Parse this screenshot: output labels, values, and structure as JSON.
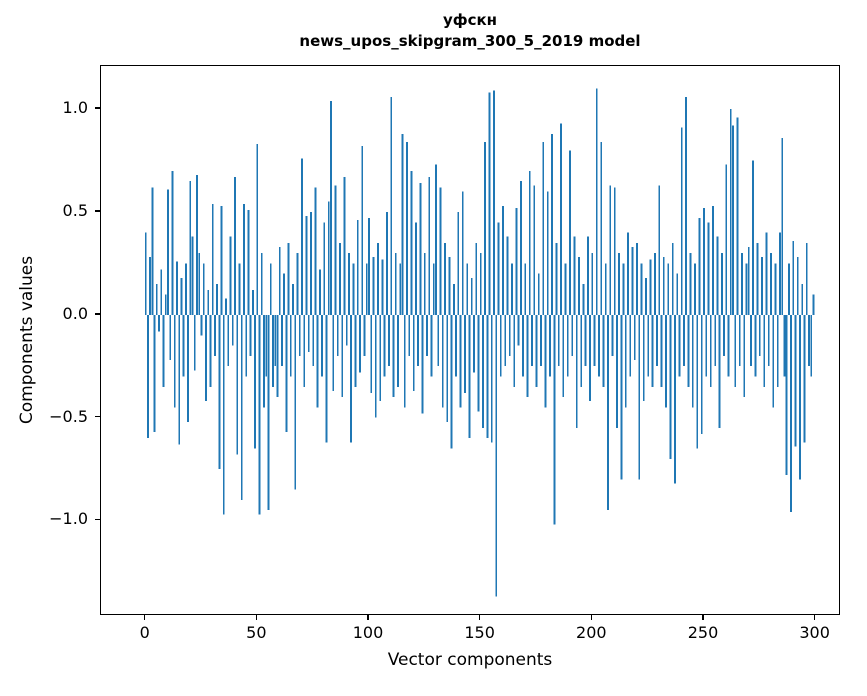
{
  "title": {
    "line1": "уфскн",
    "line2": "news_upos_skipgram_300_5_2019 model"
  },
  "chart_data": {
    "type": "bar",
    "title": "уфскн\nnews_upos_skipgram_300_5_2019 model",
    "xlabel": "Vector components",
    "ylabel": "Components values",
    "xlim": [
      -20,
      310
    ],
    "ylim": [
      -1.45,
      1.21
    ],
    "xticks": [
      0,
      50,
      100,
      150,
      200,
      250,
      300
    ],
    "yticks": [
      -1.0,
      -0.5,
      0.0,
      0.5,
      1.0
    ],
    "bar_color": "#1f77b4",
    "grid": false,
    "legend": "none",
    "x_is_index": true,
    "values": [
      0.4,
      -0.6,
      0.28,
      0.62,
      -0.57,
      0.15,
      -0.08,
      0.22,
      -0.35,
      0.1,
      0.61,
      -0.22,
      0.7,
      -0.45,
      0.26,
      -0.63,
      0.18,
      -0.3,
      0.25,
      -0.52,
      0.65,
      0.38,
      -0.27,
      0.68,
      0.3,
      -0.1,
      0.25,
      -0.42,
      0.12,
      -0.35,
      0.54,
      -0.2,
      0.15,
      -0.75,
      0.53,
      -0.97,
      0.08,
      -0.25,
      0.38,
      -0.15,
      0.67,
      -0.68,
      0.25,
      -0.9,
      0.54,
      -0.3,
      0.51,
      -0.2,
      0.12,
      -0.65,
      0.83,
      -0.97,
      0.3,
      -0.45,
      -0.3,
      -0.95,
      0.25,
      -0.35,
      -0.25,
      -0.4,
      0.33,
      -0.25,
      0.2,
      -0.57,
      0.35,
      -0.3,
      0.15,
      -0.85,
      0.3,
      -0.2,
      0.76,
      -0.35,
      0.48,
      -0.18,
      0.5,
      -0.25,
      0.62,
      -0.45,
      0.22,
      -0.3,
      0.45,
      -0.62,
      0.55,
      1.04,
      -0.37,
      0.63,
      -0.2,
      0.35,
      -0.4,
      0.67,
      -0.15,
      0.3,
      -0.62,
      0.25,
      -0.35,
      0.46,
      -0.28,
      0.82,
      -0.2,
      0.25,
      0.47,
      -0.38,
      0.28,
      -0.5,
      0.35,
      -0.42,
      0.27,
      -0.3,
      0.5,
      -0.25,
      1.06,
      -0.4,
      0.3,
      -0.35,
      0.25,
      0.88,
      -0.45,
      0.84,
      -0.2,
      0.7,
      -0.37,
      0.45,
      -0.25,
      0.64,
      -0.48,
      0.3,
      -0.2,
      0.67,
      -0.3,
      0.25,
      0.73,
      -0.25,
      0.62,
      -0.45,
      0.35,
      -0.52,
      0.28,
      -0.65,
      0.15,
      -0.3,
      0.5,
      -0.45,
      0.6,
      -0.38,
      0.25,
      -0.6,
      0.18,
      -0.28,
      0.35,
      -0.47,
      0.3,
      -0.55,
      0.84,
      -0.6,
      1.08,
      -0.62,
      1.09,
      -1.37,
      0.45,
      -0.3,
      0.53,
      -0.25,
      0.38,
      -0.2,
      0.25,
      -0.35,
      0.52,
      -0.15,
      0.65,
      -0.3,
      0.25,
      -0.4,
      0.7,
      -0.25,
      0.63,
      -0.35,
      0.2,
      -0.25,
      0.84,
      -0.45,
      0.6,
      -0.3,
      0.88,
      -1.02,
      0.35,
      -0.25,
      0.93,
      -0.4,
      0.25,
      -0.3,
      0.8,
      -0.2,
      0.38,
      -0.55,
      0.28,
      -0.35,
      0.15,
      -0.25,
      0.38,
      -0.42,
      0.3,
      -0.25,
      1.1,
      -0.3,
      0.84,
      -0.35,
      0.25,
      -0.95,
      0.63,
      -0.2,
      0.62,
      -0.55,
      0.3,
      -0.8,
      0.25,
      -0.45,
      0.4,
      -0.3,
      0.33,
      -0.22,
      0.35,
      -0.8,
      0.25,
      -0.42,
      0.18,
      -0.3,
      0.27,
      -0.35,
      0.3,
      -0.25,
      0.63,
      -0.35,
      0.28,
      -0.45,
      0.25,
      -0.7,
      0.35,
      -0.82,
      0.2,
      -0.3,
      0.91,
      -0.25,
      1.06,
      -0.35,
      0.3,
      -0.45,
      0.25,
      -0.65,
      0.47,
      -0.58,
      0.52,
      -0.3,
      0.45,
      -0.35,
      0.53,
      -0.25,
      0.38,
      -0.55,
      0.3,
      -0.2,
      0.73,
      -0.3,
      1.0,
      0.92,
      -0.35,
      0.96,
      -0.25,
      0.3,
      -0.4,
      0.25,
      0.33,
      -0.25,
      0.75,
      -0.3,
      0.35,
      -0.2,
      0.28,
      -0.35,
      0.4,
      -0.25,
      0.3,
      -0.45,
      0.25,
      -0.35,
      0.4,
      0.86,
      -0.3,
      -0.78,
      0.25,
      -0.96,
      0.36,
      -0.64,
      0.28,
      -0.8,
      0.15,
      -0.62,
      0.35,
      -0.25,
      -0.3,
      0.1
    ]
  }
}
